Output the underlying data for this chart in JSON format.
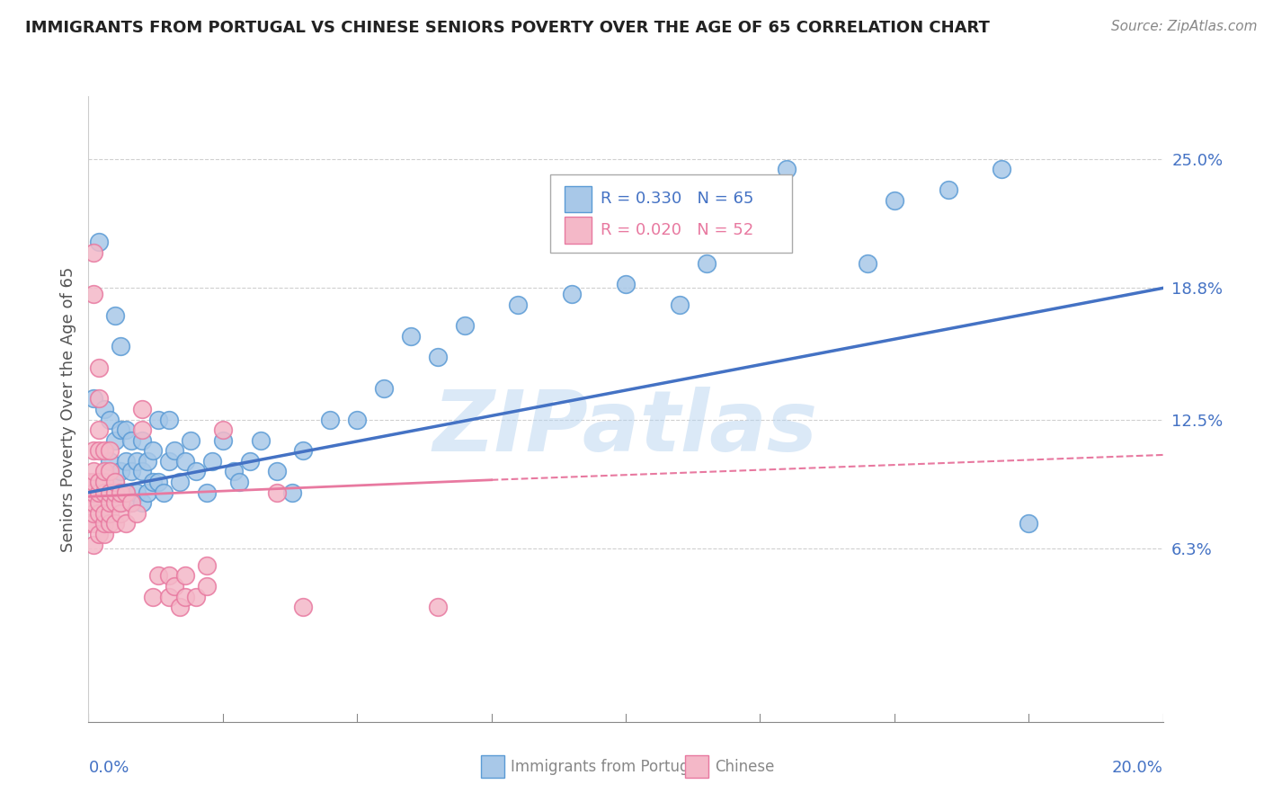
{
  "title": "IMMIGRANTS FROM PORTUGAL VS CHINESE SENIORS POVERTY OVER THE AGE OF 65 CORRELATION CHART",
  "source": "Source: ZipAtlas.com",
  "ylabel": "Seniors Poverty Over the Age of 65",
  "xlim": [
    0.0,
    0.2
  ],
  "ylim": [
    -0.02,
    0.28
  ],
  "ytick_vals": [
    0.063,
    0.125,
    0.188,
    0.25
  ],
  "ytick_labels": [
    "6.3%",
    "12.5%",
    "18.8%",
    "25.0%"
  ],
  "watermark": "ZIPatlas",
  "blue_color": "#a8c8e8",
  "blue_edge_color": "#5b9bd5",
  "pink_color": "#f4b8c8",
  "pink_edge_color": "#e879a0",
  "blue_line_color": "#4472c4",
  "pink_line_color": "#e879a0",
  "blue_scatter": [
    [
      0.001,
      0.135
    ],
    [
      0.002,
      0.21
    ],
    [
      0.005,
      0.175
    ],
    [
      0.006,
      0.16
    ],
    [
      0.003,
      0.13
    ],
    [
      0.004,
      0.105
    ],
    [
      0.004,
      0.125
    ],
    [
      0.005,
      0.095
    ],
    [
      0.005,
      0.115
    ],
    [
      0.006,
      0.085
    ],
    [
      0.006,
      0.1
    ],
    [
      0.006,
      0.12
    ],
    [
      0.007,
      0.09
    ],
    [
      0.007,
      0.105
    ],
    [
      0.007,
      0.12
    ],
    [
      0.008,
      0.085
    ],
    [
      0.008,
      0.1
    ],
    [
      0.008,
      0.115
    ],
    [
      0.009,
      0.09
    ],
    [
      0.009,
      0.105
    ],
    [
      0.01,
      0.085
    ],
    [
      0.01,
      0.1
    ],
    [
      0.01,
      0.115
    ],
    [
      0.011,
      0.09
    ],
    [
      0.011,
      0.105
    ],
    [
      0.012,
      0.095
    ],
    [
      0.012,
      0.11
    ],
    [
      0.013,
      0.095
    ],
    [
      0.013,
      0.125
    ],
    [
      0.014,
      0.09
    ],
    [
      0.015,
      0.105
    ],
    [
      0.015,
      0.125
    ],
    [
      0.016,
      0.11
    ],
    [
      0.017,
      0.095
    ],
    [
      0.018,
      0.105
    ],
    [
      0.019,
      0.115
    ],
    [
      0.02,
      0.1
    ],
    [
      0.022,
      0.09
    ],
    [
      0.023,
      0.105
    ],
    [
      0.025,
      0.115
    ],
    [
      0.027,
      0.1
    ],
    [
      0.028,
      0.095
    ],
    [
      0.03,
      0.105
    ],
    [
      0.032,
      0.115
    ],
    [
      0.035,
      0.1
    ],
    [
      0.038,
      0.09
    ],
    [
      0.04,
      0.11
    ],
    [
      0.045,
      0.125
    ],
    [
      0.05,
      0.125
    ],
    [
      0.055,
      0.14
    ],
    [
      0.06,
      0.165
    ],
    [
      0.065,
      0.155
    ],
    [
      0.07,
      0.17
    ],
    [
      0.08,
      0.18
    ],
    [
      0.09,
      0.185
    ],
    [
      0.1,
      0.19
    ],
    [
      0.11,
      0.18
    ],
    [
      0.115,
      0.2
    ],
    [
      0.12,
      0.22
    ],
    [
      0.13,
      0.245
    ],
    [
      0.145,
      0.2
    ],
    [
      0.15,
      0.23
    ],
    [
      0.16,
      0.235
    ],
    [
      0.17,
      0.245
    ],
    [
      0.175,
      0.075
    ]
  ],
  "pink_scatter": [
    [
      0.0,
      0.075
    ],
    [
      0.0,
      0.085
    ],
    [
      0.0,
      0.09
    ],
    [
      0.0,
      0.095
    ],
    [
      0.001,
      0.065
    ],
    [
      0.001,
      0.075
    ],
    [
      0.001,
      0.08
    ],
    [
      0.001,
      0.085
    ],
    [
      0.001,
      0.09
    ],
    [
      0.001,
      0.095
    ],
    [
      0.001,
      0.1
    ],
    [
      0.001,
      0.11
    ],
    [
      0.001,
      0.185
    ],
    [
      0.001,
      0.205
    ],
    [
      0.002,
      0.07
    ],
    [
      0.002,
      0.08
    ],
    [
      0.002,
      0.085
    ],
    [
      0.002,
      0.09
    ],
    [
      0.002,
      0.095
    ],
    [
      0.002,
      0.11
    ],
    [
      0.002,
      0.12
    ],
    [
      0.002,
      0.135
    ],
    [
      0.002,
      0.15
    ],
    [
      0.003,
      0.07
    ],
    [
      0.003,
      0.075
    ],
    [
      0.003,
      0.08
    ],
    [
      0.003,
      0.09
    ],
    [
      0.003,
      0.095
    ],
    [
      0.003,
      0.1
    ],
    [
      0.003,
      0.11
    ],
    [
      0.004,
      0.075
    ],
    [
      0.004,
      0.08
    ],
    [
      0.004,
      0.085
    ],
    [
      0.004,
      0.09
    ],
    [
      0.004,
      0.1
    ],
    [
      0.004,
      0.11
    ],
    [
      0.005,
      0.075
    ],
    [
      0.005,
      0.085
    ],
    [
      0.005,
      0.09
    ],
    [
      0.005,
      0.095
    ],
    [
      0.006,
      0.08
    ],
    [
      0.006,
      0.085
    ],
    [
      0.006,
      0.09
    ],
    [
      0.007,
      0.075
    ],
    [
      0.007,
      0.09
    ],
    [
      0.008,
      0.085
    ],
    [
      0.009,
      0.08
    ],
    [
      0.01,
      0.12
    ],
    [
      0.01,
      0.13
    ],
    [
      0.012,
      0.04
    ],
    [
      0.013,
      0.05
    ],
    [
      0.015,
      0.04
    ],
    [
      0.015,
      0.05
    ],
    [
      0.016,
      0.045
    ],
    [
      0.017,
      0.035
    ],
    [
      0.018,
      0.04
    ],
    [
      0.018,
      0.05
    ],
    [
      0.02,
      0.04
    ],
    [
      0.022,
      0.045
    ],
    [
      0.022,
      0.055
    ],
    [
      0.025,
      0.12
    ],
    [
      0.035,
      0.09
    ],
    [
      0.04,
      0.035
    ],
    [
      0.065,
      0.035
    ]
  ],
  "blue_trendline": [
    [
      0.0,
      0.09
    ],
    [
      0.2,
      0.188
    ]
  ],
  "pink_trendline_solid": [
    [
      0.0,
      0.088
    ],
    [
      0.075,
      0.096
    ]
  ],
  "pink_trendline_dashed": [
    [
      0.075,
      0.096
    ],
    [
      0.2,
      0.108
    ]
  ],
  "background_color": "#ffffff",
  "grid_color": "#d0d0d0"
}
